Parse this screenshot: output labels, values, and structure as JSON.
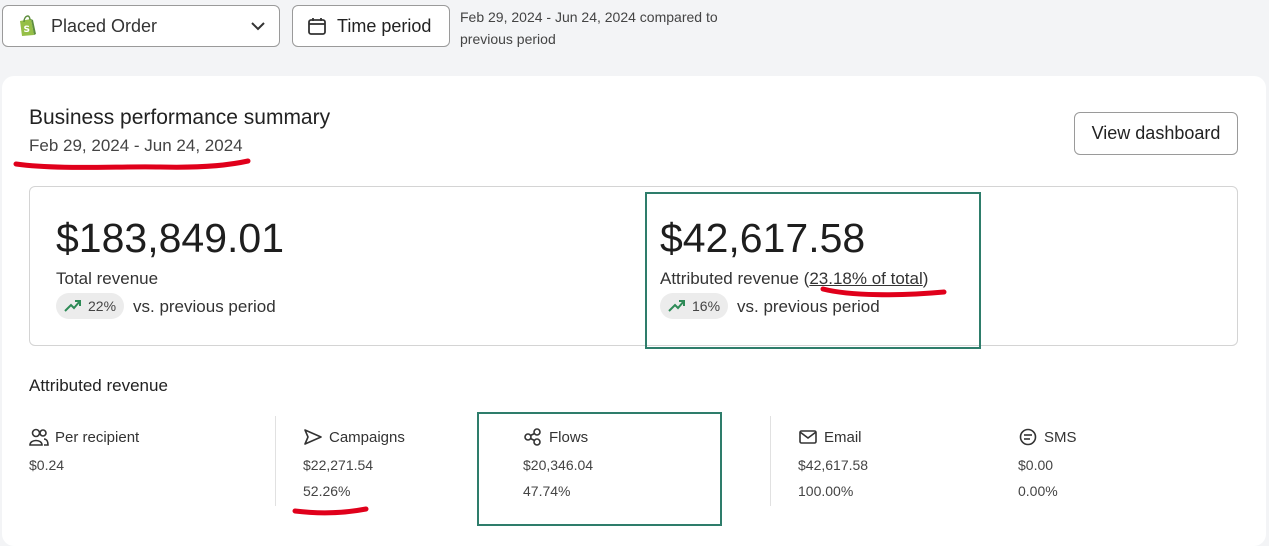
{
  "toolbar": {
    "metric_label": "Placed Order",
    "time_label": "Time period",
    "period_text": "Feb 29, 2024 - Jun 24, 2024 compared to previous period"
  },
  "card": {
    "title": "Business performance summary",
    "range": "Feb 29, 2024 - Jun 24, 2024",
    "view_button": "View dashboard"
  },
  "total": {
    "value": "$183,849.01",
    "label": "Total revenue",
    "change": "22%",
    "vs": "vs. previous period"
  },
  "attributed": {
    "value": "$42,617.58",
    "label_prefix": "Attributed revenue (",
    "label_pct": "23.18% of total",
    "label_suffix": ")",
    "change": "16%",
    "vs": "vs. previous period"
  },
  "breakdown": {
    "title": "Attributed revenue",
    "per_recipient": {
      "label": "Per recipient",
      "value": "$0.24"
    },
    "campaigns": {
      "label": "Campaigns",
      "value": "$22,271.54",
      "pct": "52.26%"
    },
    "flows": {
      "label": "Flows",
      "value": "$20,346.04",
      "pct": "47.74%"
    },
    "email": {
      "label": "Email",
      "value": "$42,617.58",
      "pct": "100.00%"
    },
    "sms": {
      "label": "SMS",
      "value": "$0.00",
      "pct": "0.00%"
    }
  },
  "colors": {
    "trend_up": "#2e8b57",
    "annotation_red": "#e0001b",
    "annotation_green": "#2e7d6b"
  }
}
